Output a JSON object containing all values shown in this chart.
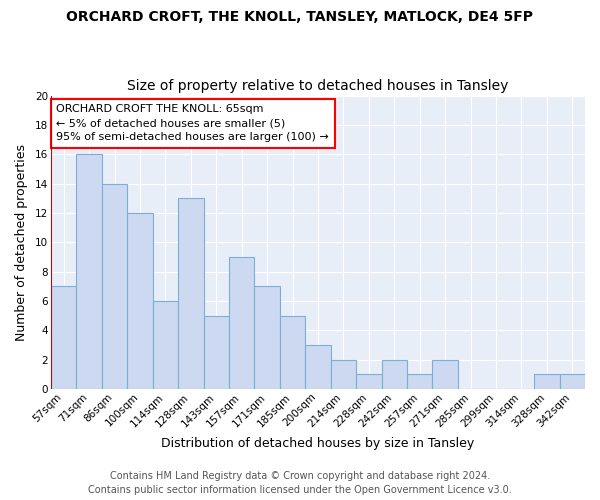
{
  "title1": "ORCHARD CROFT, THE KNOLL, TANSLEY, MATLOCK, DE4 5FP",
  "title2": "Size of property relative to detached houses in Tansley",
  "xlabel": "Distribution of detached houses by size in Tansley",
  "ylabel": "Number of detached properties",
  "categories": [
    "57sqm",
    "71sqm",
    "86sqm",
    "100sqm",
    "114sqm",
    "128sqm",
    "143sqm",
    "157sqm",
    "171sqm",
    "185sqm",
    "200sqm",
    "214sqm",
    "228sqm",
    "242sqm",
    "257sqm",
    "271sqm",
    "285sqm",
    "299sqm",
    "314sqm",
    "328sqm",
    "342sqm"
  ],
  "values": [
    7,
    16,
    14,
    12,
    6,
    13,
    5,
    9,
    7,
    5,
    3,
    2,
    1,
    2,
    1,
    2,
    0,
    0,
    0,
    1,
    1
  ],
  "bar_color": "#ccd9f0",
  "bar_edge_color": "#7bafd4",
  "red_line_color": "#cc0000",
  "annotation_box_text": "ORCHARD CROFT THE KNOLL: 65sqm\n← 5% of detached houses are smaller (5)\n95% of semi-detached houses are larger (100) →",
  "footer_text": "Contains HM Land Registry data © Crown copyright and database right 2024.\nContains public sector information licensed under the Open Government Licence v3.0.",
  "ylim": [
    0,
    20
  ],
  "yticks": [
    0,
    2,
    4,
    6,
    8,
    10,
    12,
    14,
    16,
    18,
    20
  ],
  "background_color": "#f0f4fa",
  "plot_bg_color": "#e8eef8",
  "grid_color": "#ffffff",
  "title1_fontsize": 10,
  "title2_fontsize": 10,
  "axis_label_fontsize": 9,
  "tick_fontsize": 7.5,
  "footer_fontsize": 7,
  "annotation_fontsize": 8
}
